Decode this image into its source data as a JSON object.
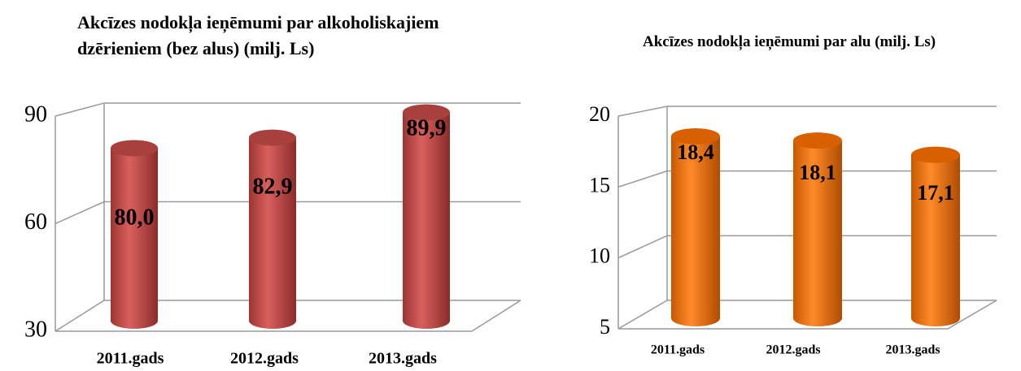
{
  "chart_data": [
    {
      "type": "bar",
      "title": "Akcīzes nodokļa ieņēmumi par alkoholiskajiem dzērieniem (bez alus) (milj. Ls)",
      "categories": [
        "2011.gads",
        "2012.gads",
        "2013.gads"
      ],
      "values": [
        80.0,
        82.9,
        89.9
      ],
      "value_labels": [
        "80,0",
        "82,9",
        "89,9"
      ],
      "color": "#c0504d",
      "ylim": [
        30,
        90
      ],
      "yticks": [
        30,
        60,
        90
      ],
      "grid": true
    },
    {
      "type": "bar",
      "title": "Akcīzes nodokļa ieņēmumi par alu   (milj. Ls)",
      "categories": [
        "2011.gads",
        "2012.gads",
        "2013.gads"
      ],
      "values": [
        18.4,
        18.1,
        17.1
      ],
      "value_labels": [
        "18,4",
        "18,1",
        "17,1"
      ],
      "color": "#f07010",
      "ylim": [
        5,
        20
      ],
      "yticks": [
        5,
        10,
        15,
        20
      ],
      "grid": true
    }
  ]
}
